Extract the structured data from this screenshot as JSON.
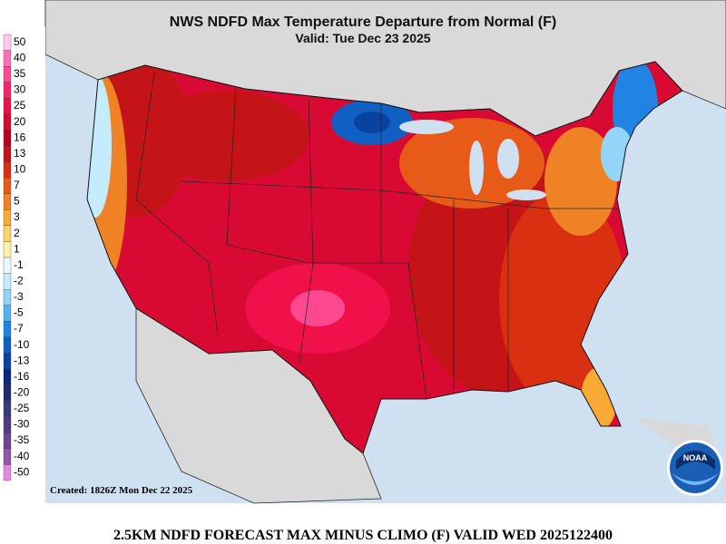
{
  "header": {
    "title": "NWS NDFD Max Temperature Departure from Normal (F)",
    "subtitle": "Valid: Tue Dec 23 2025"
  },
  "legend": {
    "values": [
      50,
      40,
      35,
      30,
      25,
      20,
      16,
      13,
      10,
      7,
      5,
      3,
      2,
      1,
      -1,
      -2,
      -3,
      -5,
      -7,
      -10,
      -13,
      -16,
      -20,
      -25,
      -30,
      -35,
      -40,
      -50
    ],
    "colors": [
      "#ffc8ec",
      "#ff70b8",
      "#ff4890",
      "#ff2066",
      "#f0104a",
      "#d80a34",
      "#b80020",
      "#c41418",
      "#d83010",
      "#e85a18",
      "#f08226",
      "#f8aa34",
      "#fcd266",
      "#fff2a8",
      "#eaf8ff",
      "#c4ecfc",
      "#94d4f8",
      "#54b2f0",
      "#2284e2",
      "#1060c4",
      "#0a42a2",
      "#0a2a7c",
      "#222a72",
      "#3a3a7a",
      "#523a84",
      "#704494",
      "#9454ac",
      "#e488e4"
    ]
  },
  "created": "Created: 1826Z Mon Dec 22 2025",
  "footer": "2.5KM NDFD FORECAST MAX MINUS CLIMO (F) VALID WED 2025122400",
  "logo": "NOAA"
}
